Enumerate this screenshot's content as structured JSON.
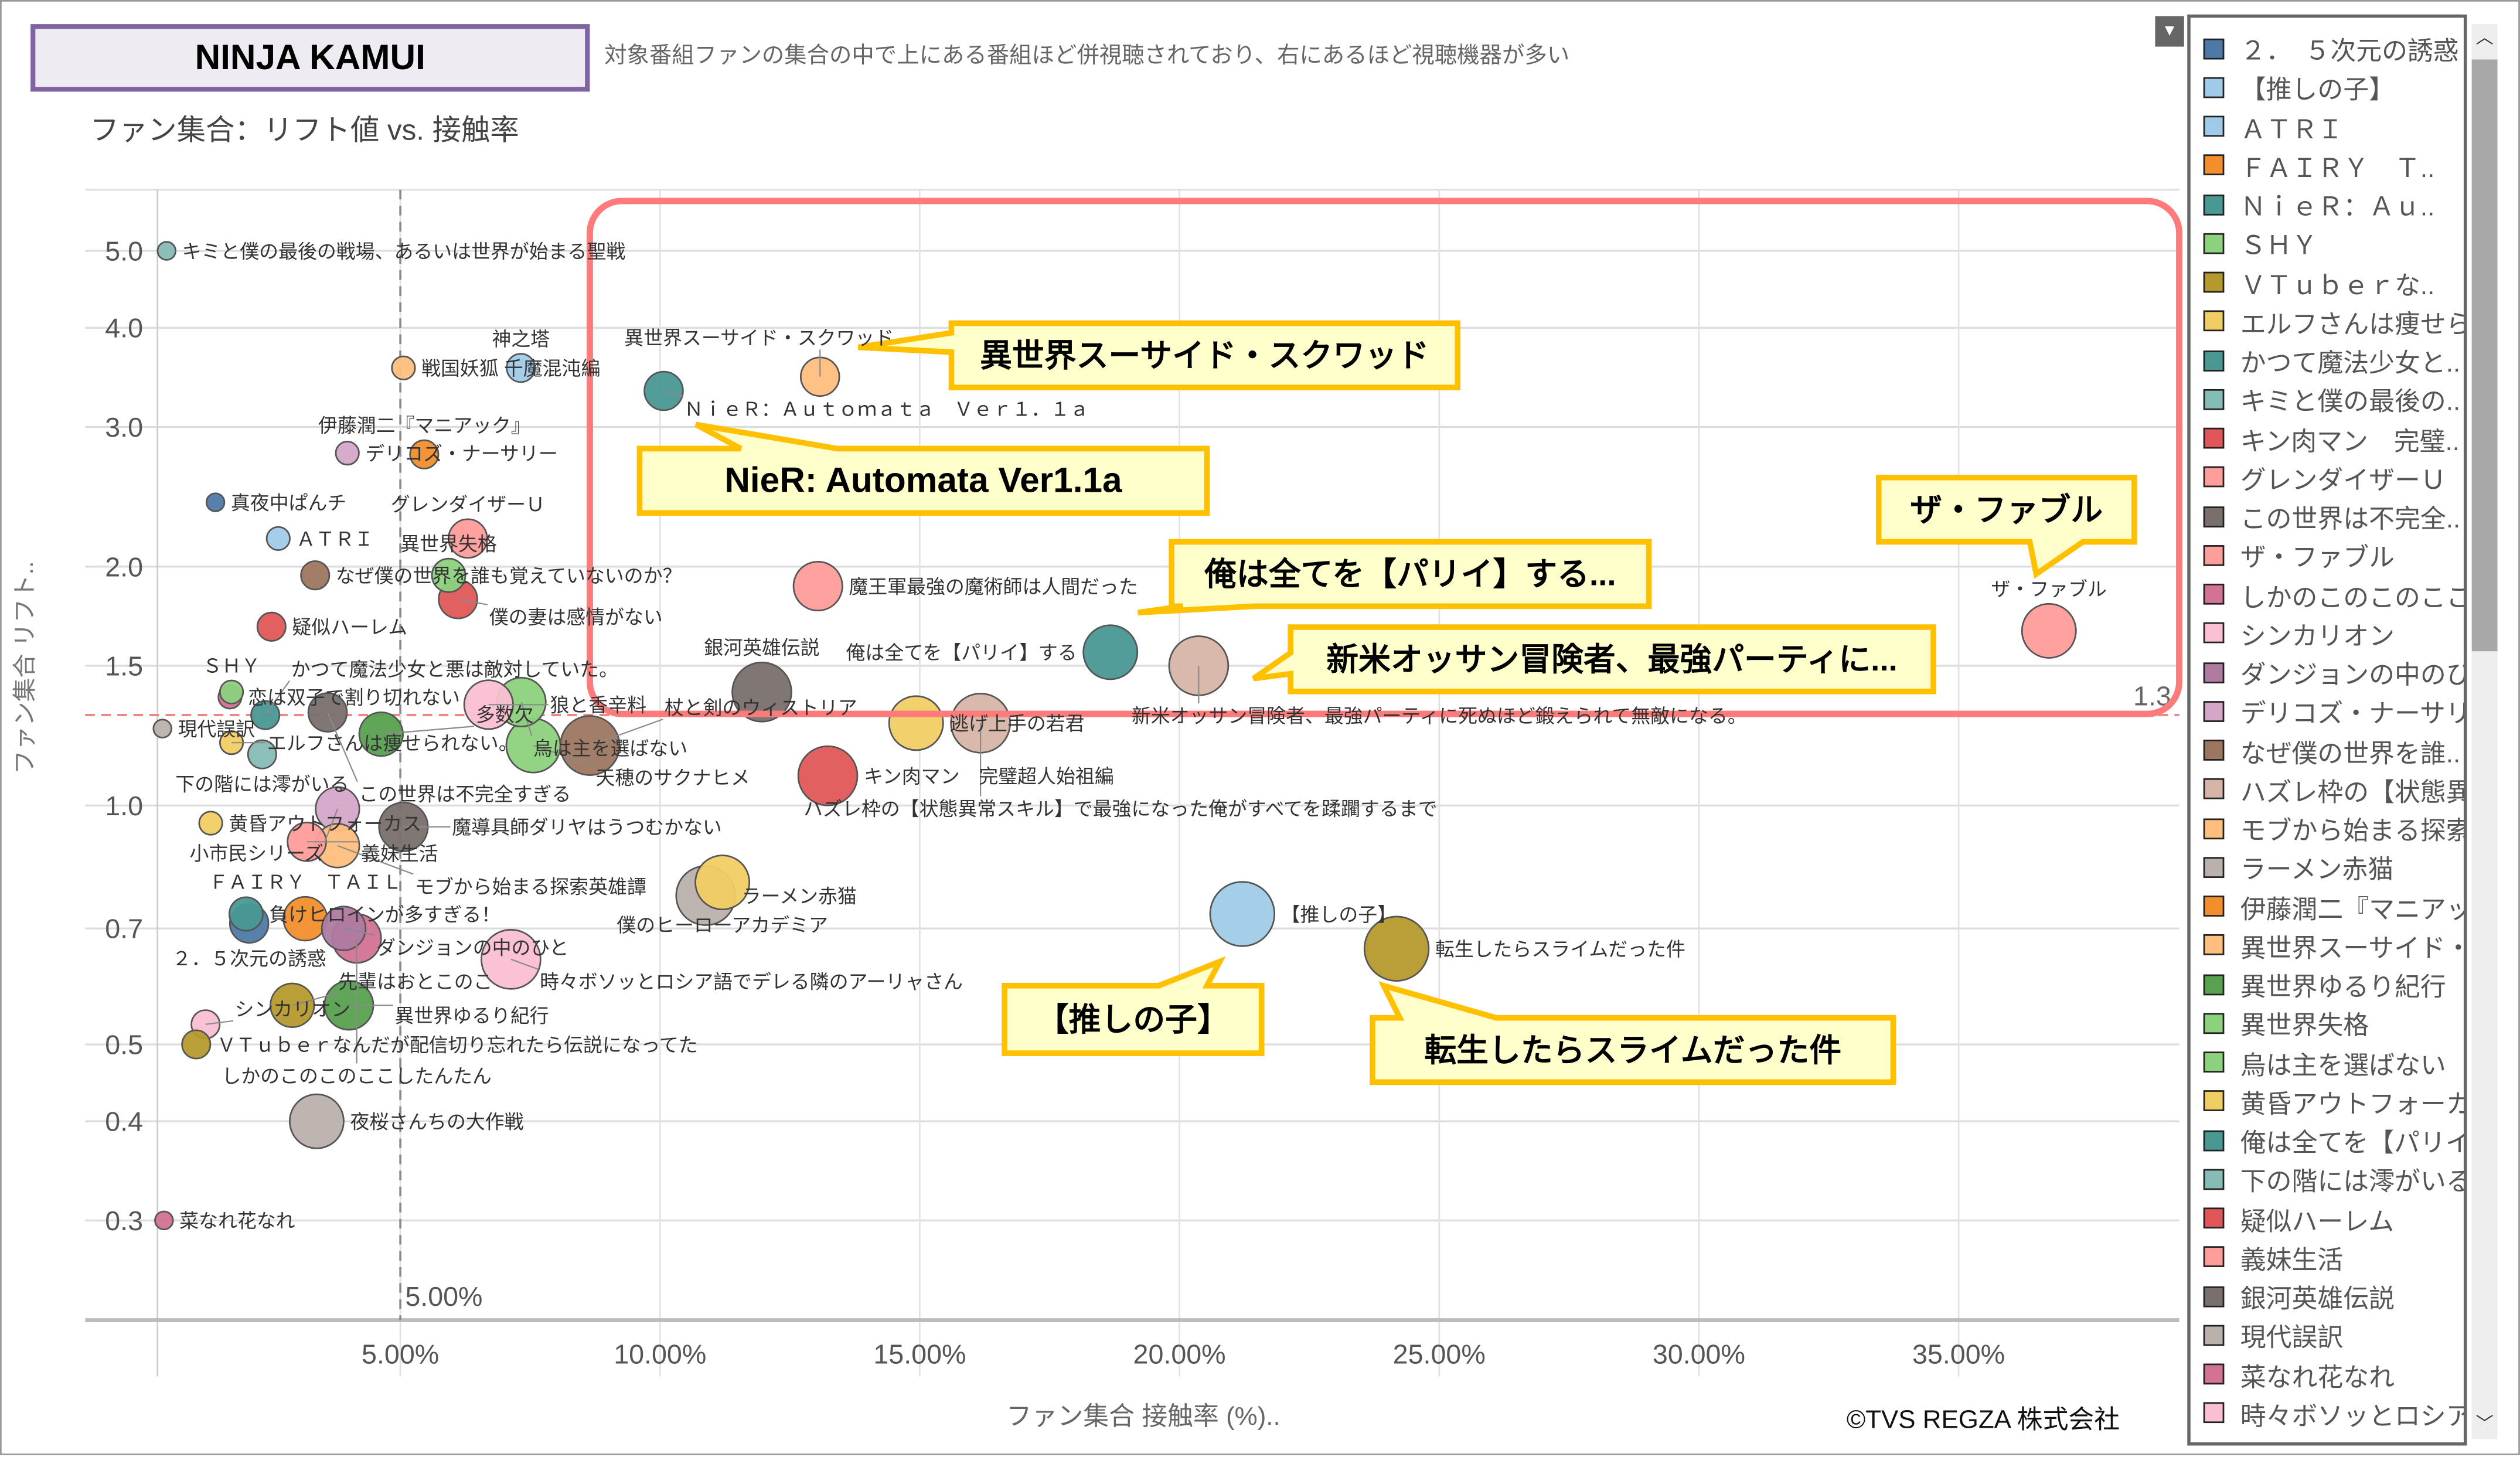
{
  "header": {
    "title": "NINJA KAMUI",
    "subtitle": "ファン集合：リフト値 vs. 接触率",
    "description": "対象番組ファンの集合の中で上にある番組ほど併視聴されており、右にあるほど視聴機器が多い"
  },
  "footer": {
    "copyright": "©TVS REGZA 株式会社"
  },
  "colors": {
    "highlight": "#ff7b7b",
    "callout_border": "#ffc000",
    "callout_fill": "#ffffcc",
    "title_border": "#8064a2"
  },
  "chart_data": {
    "type": "scatter",
    "xlabel": "ファン集合 接触率 (%)..",
    "ylabel": "ファン集合 リフト..",
    "x_scale": "linear",
    "y_scale": "log",
    "xlim": [
      0,
      39
    ],
    "ylim": [
      0.25,
      5.5
    ],
    "grid": true,
    "x_ticks": [
      "5.00%",
      "10.00%",
      "15.00%",
      "20.00%",
      "25.00%",
      "30.00%",
      "35.00%"
    ],
    "x_tick_values": [
      5,
      10,
      15,
      20,
      25,
      30,
      35
    ],
    "y_ticks": [
      "5.0",
      "4.0",
      "3.0",
      "2.0",
      "1.5",
      "1.0",
      "0.7",
      "0.5",
      "0.4",
      "0.3"
    ],
    "y_tick_values": [
      5,
      4,
      3,
      2,
      1.5,
      1,
      0.7,
      0.5,
      0.4,
      0.3
    ],
    "reference_lines": [
      {
        "axis": "x",
        "value": 5,
        "label": "5.00%"
      },
      {
        "axis": "y",
        "value": 1.3,
        "label": "1.3"
      }
    ],
    "legend_position": "right",
    "points": [
      {
        "label": "キミと僕の最後の戦場、あるいは世界が始まる聖戦",
        "x": 0.5,
        "y": 5.0,
        "color": "#86bcb6",
        "size": 1
      },
      {
        "label": "戦国妖狐 千魔混沌編",
        "x": 5.06,
        "y": 3.56,
        "color": "#ffbe7d",
        "size": 2
      },
      {
        "label": "神之塔",
        "x": 7.32,
        "y": 3.56,
        "color": "#a0cbe8",
        "size": 3
      },
      {
        "label": "ＮｉｅＲ：Ａｕｔｏｍａｔａ　Ｖｅｒ１．１ａ",
        "x": 10.07,
        "y": 3.33,
        "color": "#499894",
        "size": 5
      },
      {
        "label": "異世界スーサイド・スクワッド",
        "x": 13.08,
        "y": 3.47,
        "color": "#ffbe7d",
        "size": 5
      },
      {
        "label": "デリコズ・ナーサリー",
        "x": 3.98,
        "y": 2.78,
        "color": "#d4a6c8",
        "size": 2
      },
      {
        "label": "伊藤潤二『マニアック』",
        "x": 5.46,
        "y": 2.77,
        "color": "#f28e2b",
        "size": 3
      },
      {
        "label": "真夜中ぱんチ",
        "x": 1.44,
        "y": 2.41,
        "color": "#4e79a7",
        "size": 1
      },
      {
        "label": "ＡＴＲＩ",
        "x": 2.65,
        "y": 2.17,
        "color": "#a0cbe8",
        "size": 2
      },
      {
        "label": "グレンダイザーＵ",
        "x": 6.3,
        "y": 2.17,
        "color": "#ff9d9a",
        "size": 5
      },
      {
        "label": "なぜ僕の世界を誰も覚えていないのか？",
        "x": 3.36,
        "y": 1.95,
        "color": "#9d7660",
        "size": 3
      },
      {
        "label": "異世界失格",
        "x": 5.93,
        "y": 1.95,
        "color": "#8cd17d",
        "size": 4
      },
      {
        "label": "僕の妻は感情がない",
        "x": 6.11,
        "y": 1.82,
        "color": "#e15759",
        "size": 5
      },
      {
        "label": "疑似ハーレム",
        "x": 2.52,
        "y": 1.68,
        "color": "#e15759",
        "size": 3
      },
      {
        "label": "魔王軍最強の魔術師は人間だった",
        "x": 13.04,
        "y": 1.89,
        "color": "#ff9d9a",
        "size": 7
      },
      {
        "label": "俺は全てを【パリイ】する",
        "x": 18.67,
        "y": 1.56,
        "color": "#499894",
        "size": 8
      },
      {
        "label": "新米オッサン冒険者、最強パーティに死ぬほど鍛えられて無敵になる。",
        "x": 20.37,
        "y": 1.5,
        "color": "#d7b5a6",
        "size": 9
      },
      {
        "label": "ザ・ファブル",
        "x": 36.74,
        "y": 1.66,
        "color": "#ff9d9a",
        "size": 8
      },
      {
        "label": "銀河英雄伝説",
        "x": 11.96,
        "y": 1.39,
        "color": "#79706e",
        "size": 9
      },
      {
        "label": "逃げ上手の若君",
        "x": 14.93,
        "y": 1.27,
        "color": "#f1ce63",
        "size": 8
      },
      {
        "label": "ハズレ枠の【状態異常スキル】で最強になった俺がすべてを蹂躙するまで",
        "x": 16.17,
        "y": 1.27,
        "color": "#d7b5a6",
        "size": 9
      },
      {
        "label": "キン肉マン　完璧超人始祖編",
        "x": 13.23,
        "y": 1.09,
        "color": "#e15759",
        "size": 9
      },
      {
        "label": "烏は主を選ばない",
        "x": 7.33,
        "y": 1.35,
        "color": "#8cd17d",
        "size": 7
      },
      {
        "label": "狼と香辛料",
        "x": 6.7,
        "y": 1.34,
        "color": "#fabfd2",
        "size": 7
      },
      {
        "label": "天穂のサクナヒメ",
        "x": 7.56,
        "y": 1.19,
        "color": "#8cd17d",
        "size": 8
      },
      {
        "label": "杖と剣のウィストリア",
        "x": 8.65,
        "y": 1.19,
        "color": "#9d7660",
        "size": 9
      },
      {
        "label": "恋は双子で割り切れない",
        "x": 1.72,
        "y": 1.37,
        "color": "#d37295",
        "size": 2
      },
      {
        "label": "ＳＨＹ",
        "x": 1.75,
        "y": 1.39,
        "color": "#8cd17d",
        "size": 2
      },
      {
        "label": "かつて魔法少女と悪は敵対していた。",
        "x": 2.4,
        "y": 1.3,
        "color": "#499894",
        "size": 3
      },
      {
        "label": "この世界は不完全すぎる",
        "x": 3.6,
        "y": 1.31,
        "color": "#79706e",
        "size": 5
      },
      {
        "label": "多数欠",
        "x": 4.63,
        "y": 1.23,
        "color": "#59a14f",
        "size": 6
      },
      {
        "label": "現代誤訳",
        "x": 0.42,
        "y": 1.25,
        "color": "#bab0ac",
        "size": 1
      },
      {
        "label": "エルフさんは痩せられない。",
        "x": 1.75,
        "y": 1.2,
        "color": "#f1ce63",
        "size": 2
      },
      {
        "label": "下の階には澪がいる",
        "x": 2.34,
        "y": 1.16,
        "color": "#86bcb6",
        "size": 3
      },
      {
        "label": "黄昏アウトフォーカス",
        "x": 1.35,
        "y": 0.95,
        "color": "#f1ce63",
        "size": 2
      },
      {
        "label": "小市民シリーズ",
        "x": 3.79,
        "y": 0.99,
        "color": "#d4a6c8",
        "size": 6
      },
      {
        "label": "魔導具師ダリヤはうつむかない",
        "x": 5.06,
        "y": 0.94,
        "color": "#79706e",
        "size": 7
      },
      {
        "label": "義妹生活",
        "x": 3.2,
        "y": 0.9,
        "color": "#ff9d9a",
        "size": 5
      },
      {
        "label": "モブから始まる探索英雄譚",
        "x": 3.79,
        "y": 0.89,
        "color": "#ffbe7d",
        "size": 6
      },
      {
        "label": "僕のヒーローアカデミア",
        "x": 11.2,
        "y": 0.8,
        "color": "#f1ce63",
        "size": 8
      },
      {
        "label": "ラーメン赤猫",
        "x": 10.88,
        "y": 0.77,
        "color": "#bab0ac",
        "size": 9
      },
      {
        "label": "【推しの子】",
        "x": 21.21,
        "y": 0.73,
        "color": "#a0cbe8",
        "size": 10
      },
      {
        "label": "転生したらスライムだった件",
        "x": 24.18,
        "y": 0.66,
        "color": "#b6992d",
        "size": 10
      },
      {
        "label": "時々ボソッとロシア語でデレる隣のアーリャさん",
        "x": 7.13,
        "y": 0.64,
        "color": "#fabfd2",
        "size": 9
      },
      {
        "label": "負けヒロインが多すぎる！",
        "x": 2.03,
        "y": 0.73,
        "color": "#499894",
        "size": 4
      },
      {
        "label": "２．５次元の誘惑",
        "x": 2.09,
        "y": 0.71,
        "color": "#4e79a7",
        "size": 5
      },
      {
        "label": "ＦＡＩＲＹ　ＴＡＩＬ",
        "x": 3.17,
        "y": 0.72,
        "color": "#f28e2b",
        "size": 6
      },
      {
        "label": "ダンジョンの中のひと",
        "x": 3.91,
        "y": 0.7,
        "color": "#b07aa1",
        "size": 6
      },
      {
        "label": "しかのこのこのここしたんたん",
        "x": 4.16,
        "y": 0.68,
        "color": "#d37295",
        "size": 7
      },
      {
        "label": "先輩はおとこのこ",
        "x": 2.92,
        "y": 0.56,
        "color": "#b6992d",
        "size": 6
      },
      {
        "label": "異世界ゆるり紀行",
        "x": 4.01,
        "y": 0.56,
        "color": "#59a14f",
        "size": 7
      },
      {
        "label": "シンカリオン",
        "x": 1.25,
        "y": 0.53,
        "color": "#fabfd2",
        "size": 3
      },
      {
        "label": "ＶＴｕｂｅｒなんだが配信切り忘れたら伝説になってた",
        "x": 1.07,
        "y": 0.5,
        "color": "#b6992d",
        "size": 3
      },
      {
        "label": "夜桜さんちの大作戦",
        "x": 3.39,
        "y": 0.4,
        "color": "#bab0ac",
        "size": 8
      },
      {
        "label": "菜なれ花なれ",
        "x": 0.45,
        "y": 0.3,
        "color": "#d37295",
        "size": 1
      }
    ],
    "callouts": [
      {
        "text": "異世界スーサイド・スクワッド"
      },
      {
        "text": "NieR: Automata Ver1.1a"
      },
      {
        "text": "ザ・ファブル"
      },
      {
        "text": "俺は全てを【パリイ】する..."
      },
      {
        "text": "新米オッサン冒険者、最強パーティに..."
      },
      {
        "text": "【推しの子】"
      },
      {
        "text": "転生したらスライムだった件"
      }
    ]
  },
  "legend": {
    "items": [
      {
        "label": "２．　５次元の誘惑",
        "color": "#4e79a7"
      },
      {
        "label": "【推しの子】",
        "color": "#a0cbe8"
      },
      {
        "label": "ＡＴＲＩ",
        "color": "#a0cbe8"
      },
      {
        "label": "ＦＡＩＲＹ　Ｔ..",
        "color": "#f28e2b"
      },
      {
        "label": "ＮｉｅＲ：Ａｕ..",
        "color": "#499894"
      },
      {
        "label": "ＳＨＹ",
        "color": "#8cd17d"
      },
      {
        "label": "ＶＴｕｂｅｒな..",
        "color": "#b6992d"
      },
      {
        "label": "エルフさんは痩せら..",
        "color": "#f1ce63"
      },
      {
        "label": "かつて魔法少女と..",
        "color": "#499894"
      },
      {
        "label": "キミと僕の最後の..",
        "color": "#86bcb6"
      },
      {
        "label": "キン肉マン　完璧..",
        "color": "#e15759"
      },
      {
        "label": "グレンダイザーＵ",
        "color": "#ff9d9a"
      },
      {
        "label": "この世界は不完全..",
        "color": "#79706e"
      },
      {
        "label": "ザ・ファブル",
        "color": "#ff9d9a"
      },
      {
        "label": "しかのこのこのここし..",
        "color": "#d37295"
      },
      {
        "label": "シンカリオン",
        "color": "#fabfd2"
      },
      {
        "label": "ダンジョンの中のひと",
        "color": "#b07aa1"
      },
      {
        "label": "デリコズ・ナーサリー",
        "color": "#d4a6c8"
      },
      {
        "label": "なぜ僕の世界を誰..",
        "color": "#9d7660"
      },
      {
        "label": "ハズレ枠の【状態異..",
        "color": "#d7b5a6"
      },
      {
        "label": "モブから始まる探索..",
        "color": "#ffbe7d"
      },
      {
        "label": "ラーメン赤猫",
        "color": "#bab0ac"
      },
      {
        "label": "伊藤潤二『マニアッ..",
        "color": "#f28e2b"
      },
      {
        "label": "異世界スーサイド・..",
        "color": "#ffbe7d"
      },
      {
        "label": "異世界ゆるり紀行",
        "color": "#59a14f"
      },
      {
        "label": "異世界失格",
        "color": "#8cd17d"
      },
      {
        "label": "烏は主を選ばない",
        "color": "#8cd17d"
      },
      {
        "label": "黄昏アウトフォーカス",
        "color": "#f1ce63"
      },
      {
        "label": "俺は全てを【パリイ】..",
        "color": "#499894"
      },
      {
        "label": "下の階には澪がいる",
        "color": "#86bcb6"
      },
      {
        "label": "疑似ハーレム",
        "color": "#e15759"
      },
      {
        "label": "義妹生活",
        "color": "#ff9d9a"
      },
      {
        "label": "銀河英雄伝説",
        "color": "#79706e"
      },
      {
        "label": "現代誤訳",
        "color": "#bab0ac"
      },
      {
        "label": "菜なれ花なれ",
        "color": "#d37295"
      },
      {
        "label": "時々ボソッとロシア..",
        "color": "#fabfd2"
      }
    ]
  }
}
